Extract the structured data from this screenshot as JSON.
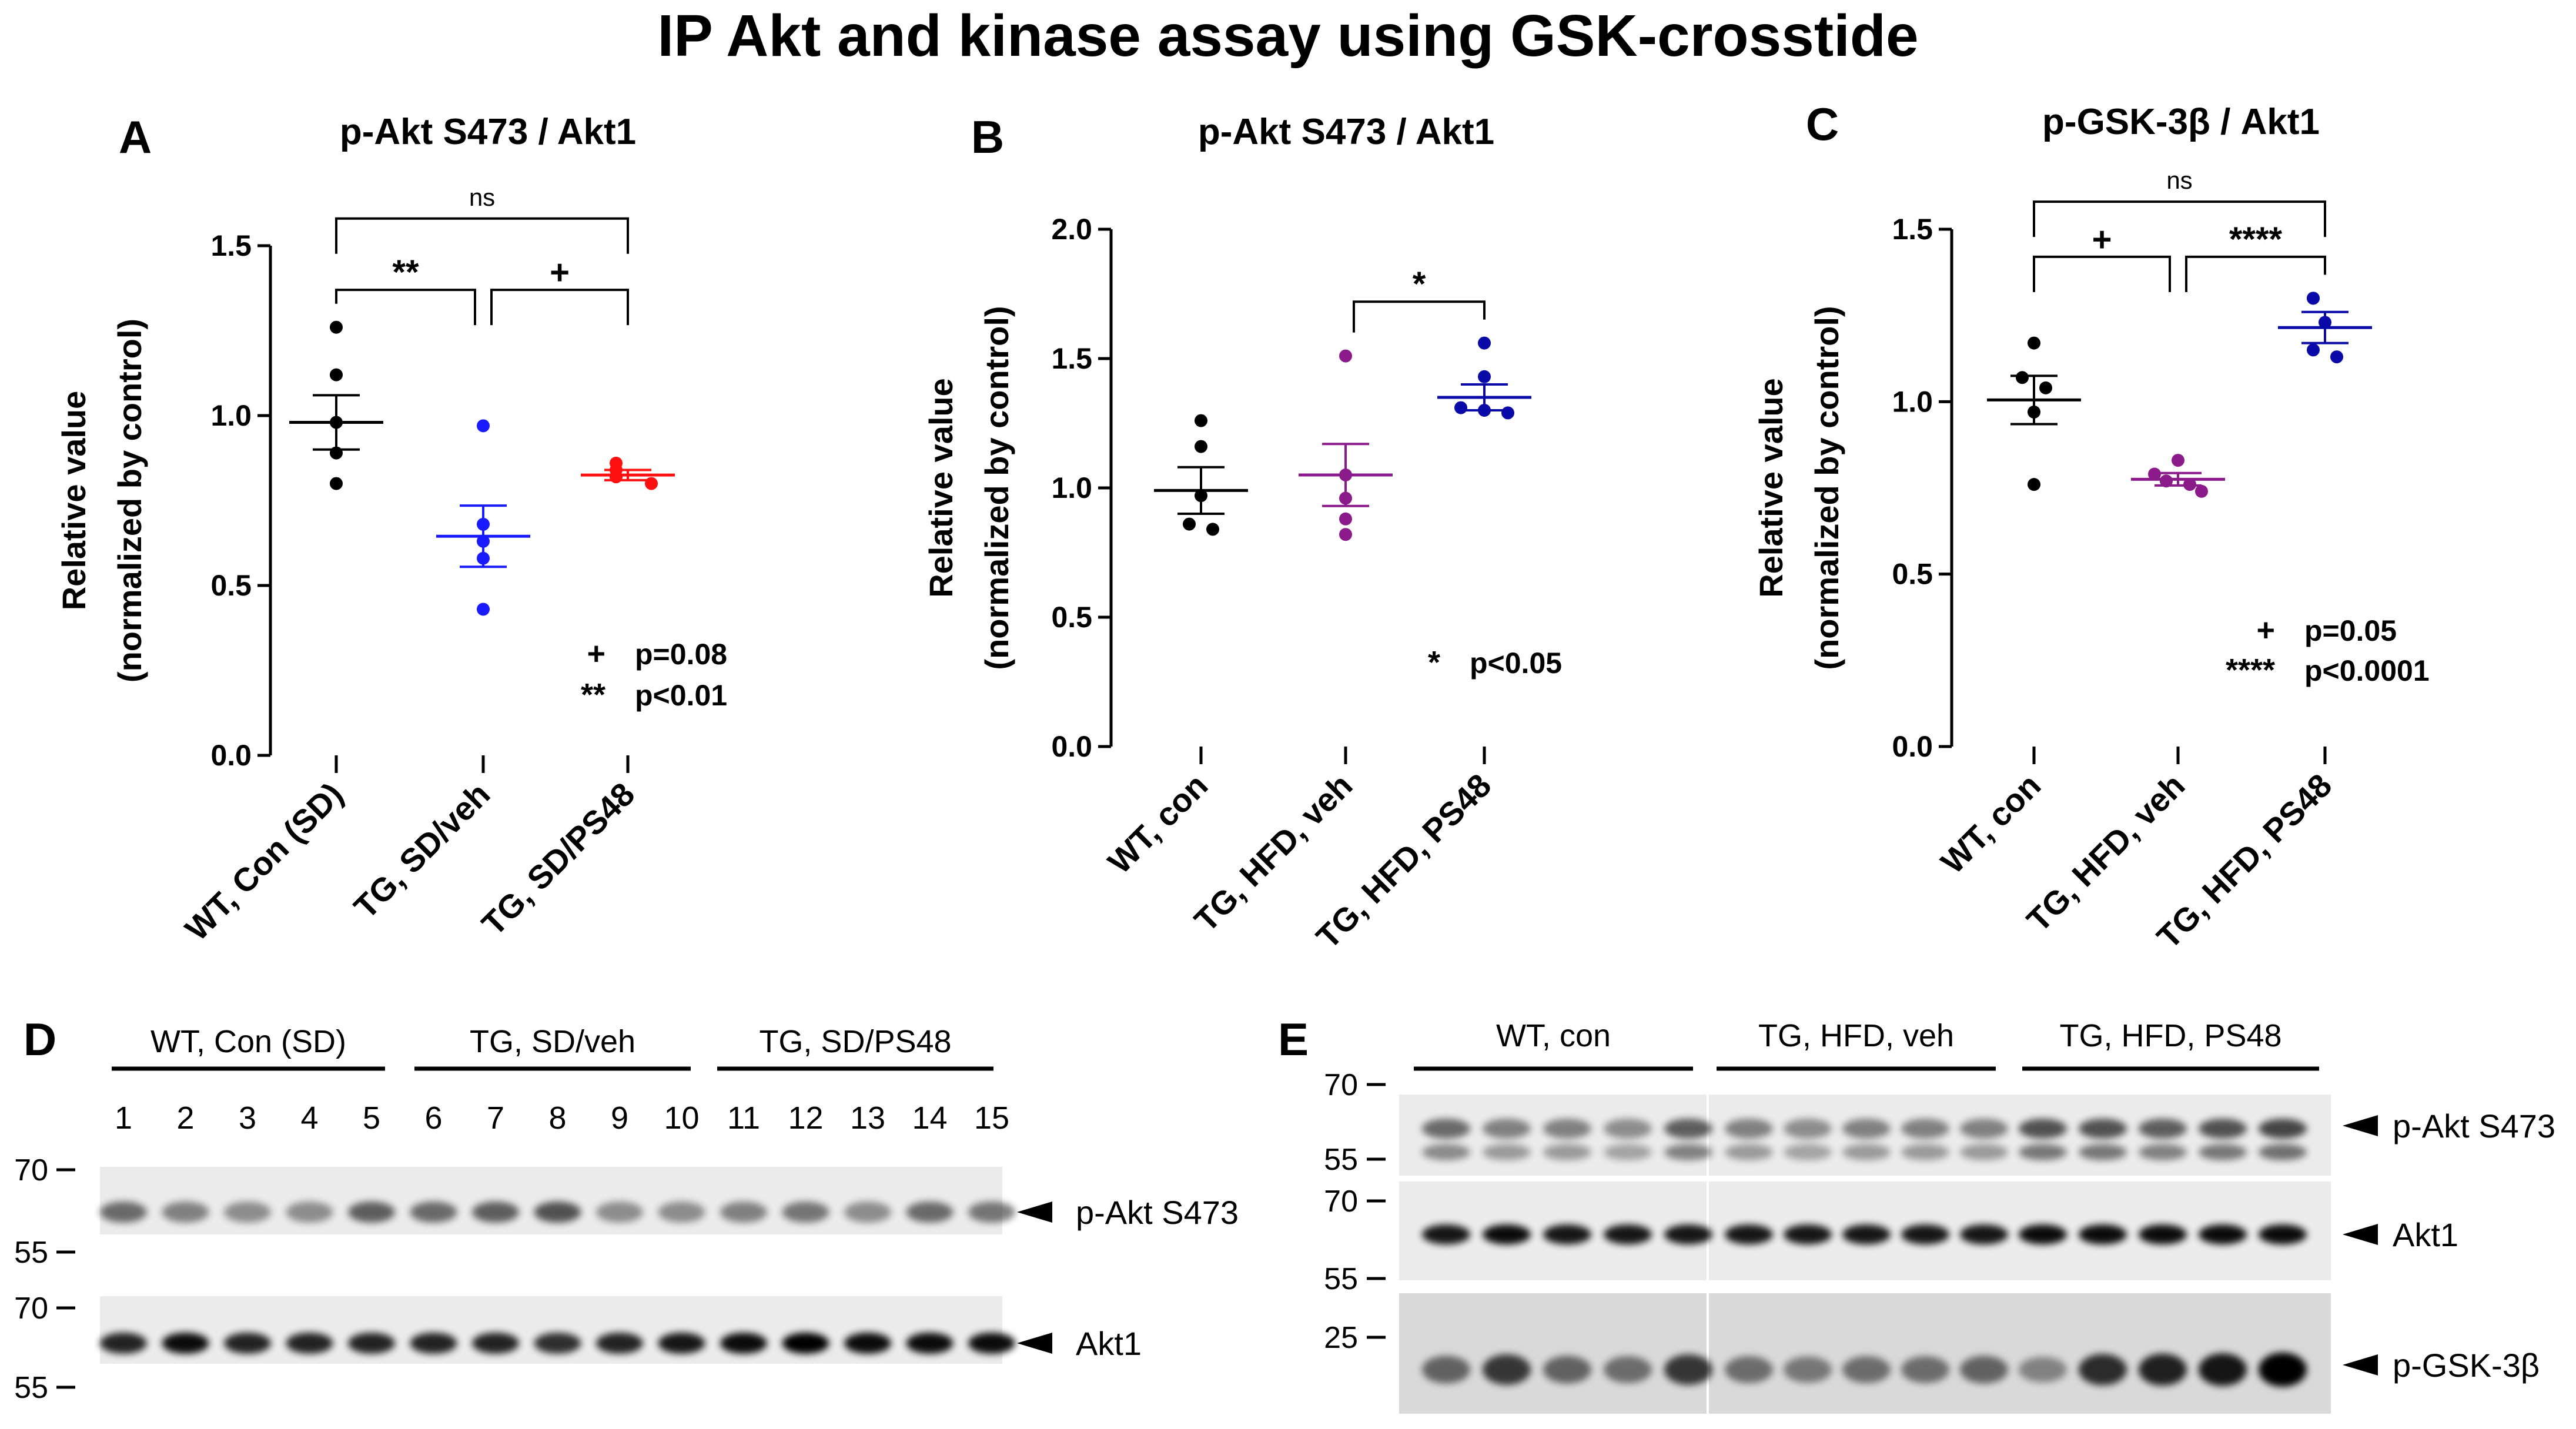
{
  "figure": {
    "title": "IP Akt and kinase assay using GSK-crosstide"
  },
  "chart_data": [
    {
      "panel": "A",
      "type": "scatter",
      "title": "p-Akt S473 / Akt1",
      "ylabel_line1": "Relative value",
      "ylabel_line2": "(normalized by control)",
      "ylim": [
        0,
        1.5
      ],
      "yticks": [
        "0.0",
        "0.5",
        "1.0",
        "1.5"
      ],
      "categories": [
        "WT, Con (SD)",
        "TG, SD/veh",
        "TG, SD/PS48"
      ],
      "series": [
        {
          "color": "#000000",
          "points": [
            1.26,
            1.12,
            0.98,
            0.89,
            0.8
          ],
          "mean": 0.98,
          "sem": 0.08
        },
        {
          "color": "#1a1aff",
          "points": [
            0.97,
            0.68,
            0.63,
            0.58,
            0.43
          ],
          "mean": 0.645,
          "sem": 0.09
        },
        {
          "color": "#ff1010",
          "points": [
            0.86,
            0.84,
            0.82,
            0.82,
            0.8
          ],
          "mean": 0.825,
          "sem": 0.015
        }
      ],
      "brackets": [
        {
          "from": 0,
          "to": 2,
          "y": 1.58,
          "label": "ns"
        },
        {
          "from": 0,
          "to": 1,
          "y": 1.37,
          "label": "**"
        },
        {
          "from": 1,
          "to": 2,
          "y": 1.37,
          "label": "+"
        }
      ],
      "legend": [
        {
          "sym": "+",
          "text": "p=0.08"
        },
        {
          "sym": "**",
          "text": "p<0.01"
        }
      ]
    },
    {
      "panel": "B",
      "type": "scatter",
      "title": "p-Akt S473 / Akt1",
      "ylabel_line1": "Relative value",
      "ylabel_line2": "(normalized by control)",
      "ylim": [
        0,
        2.0
      ],
      "yticks": [
        "0.0",
        "0.5",
        "1.0",
        "1.5",
        "2.0"
      ],
      "categories": [
        "WT, con",
        "TG, HFD, veh",
        "TG, HFD, PS48"
      ],
      "series": [
        {
          "color": "#000000",
          "points": [
            1.26,
            1.16,
            0.97,
            0.86,
            0.84
          ],
          "mean": 0.99,
          "sem": 0.09
        },
        {
          "color": "#8b1a8b",
          "points": [
            1.51,
            1.05,
            0.96,
            0.88,
            0.82
          ],
          "mean": 1.05,
          "sem": 0.12
        },
        {
          "color": "#0a0aa8",
          "points": [
            1.56,
            1.43,
            1.31,
            1.3,
            1.29
          ],
          "mean": 1.35,
          "sem": 0.05
        }
      ],
      "brackets": [
        {
          "from": 1,
          "to": 2,
          "y": 1.72,
          "label": "*"
        }
      ],
      "legend": [
        {
          "sym": "*",
          "text": "p<0.05"
        }
      ]
    },
    {
      "panel": "C",
      "type": "scatter",
      "title": "p-GSK-3β / Akt1",
      "ylabel_line1": "Relative value",
      "ylabel_line2": "(normalized by control)",
      "ylim": [
        0,
        1.5
      ],
      "yticks": [
        "0.0",
        "0.5",
        "1.0",
        "1.5"
      ],
      "categories": [
        "WT, con",
        "TG, HFD, veh",
        "TG, HFD, PS48"
      ],
      "series": [
        {
          "color": "#000000",
          "points": [
            1.17,
            1.07,
            1.04,
            0.97,
            0.76
          ],
          "mean": 1.005,
          "sem": 0.07
        },
        {
          "color": "#8b1a8b",
          "points": [
            0.83,
            0.79,
            0.77,
            0.76,
            0.74
          ],
          "mean": 0.775,
          "sem": 0.018
        },
        {
          "color": "#0a0aa8",
          "points": [
            1.3,
            1.3,
            1.23,
            1.15,
            1.13
          ],
          "mean": 1.215,
          "sem": 0.045
        }
      ],
      "brackets": [
        {
          "from": 0,
          "to": 2,
          "y": 1.58,
          "label": "ns"
        },
        {
          "from": 0,
          "to": 1,
          "y": 1.42,
          "label": "+"
        },
        {
          "from": 1,
          "to": 2,
          "y": 1.42,
          "label": "****"
        }
      ],
      "legend": [
        {
          "sym": "+",
          "text": "p=0.05"
        },
        {
          "sym": "****",
          "text": "p<0.0001"
        }
      ]
    }
  ],
  "blots": {
    "D": {
      "panel": "D",
      "groups": [
        "WT, Con (SD)",
        "TG, SD/veh",
        "TG, SD/PS48"
      ],
      "lanes": [
        "1",
        "2",
        "3",
        "4",
        "5",
        "6",
        "7",
        "8",
        "9",
        "10",
        "11",
        "12",
        "13",
        "14",
        "15"
      ],
      "rows": [
        {
          "label": "p-Akt S473",
          "markers": [
            "70",
            "55"
          ],
          "intensity": [
            0.55,
            0.45,
            0.4,
            0.4,
            0.6,
            0.55,
            0.6,
            0.65,
            0.4,
            0.4,
            0.45,
            0.5,
            0.4,
            0.55,
            0.5
          ]
        },
        {
          "label": "Akt1",
          "markers": [
            "70",
            "55"
          ],
          "intensity": [
            0.85,
            0.95,
            0.85,
            0.85,
            0.85,
            0.85,
            0.85,
            0.8,
            0.85,
            0.9,
            0.95,
            1.0,
            0.95,
            0.95,
            0.95
          ]
        }
      ]
    },
    "E": {
      "panel": "E",
      "groups": [
        "WT, con",
        "TG, HFD, veh",
        "TG, HFD, PS48"
      ],
      "rows": [
        {
          "label": "p-Akt S473",
          "markers": [
            "70",
            "55"
          ],
          "intensity": [
            0.55,
            0.45,
            0.45,
            0.4,
            0.6,
            0.45,
            0.4,
            0.45,
            0.45,
            0.45,
            0.65,
            0.65,
            0.6,
            0.65,
            0.7
          ]
        },
        {
          "label": "Akt1",
          "markers": [
            "70",
            "55"
          ],
          "intensity": [
            0.9,
            0.95,
            0.9,
            0.9,
            0.9,
            0.9,
            0.9,
            0.9,
            0.9,
            0.9,
            0.95,
            0.95,
            0.95,
            0.95,
            0.95
          ]
        },
        {
          "label": "p-GSK-3β",
          "markers": [
            "25"
          ],
          "intensity": [
            0.55,
            0.75,
            0.55,
            0.5,
            0.75,
            0.5,
            0.45,
            0.5,
            0.5,
            0.55,
            0.4,
            0.8,
            0.85,
            0.9,
            1.0
          ]
        }
      ]
    }
  }
}
